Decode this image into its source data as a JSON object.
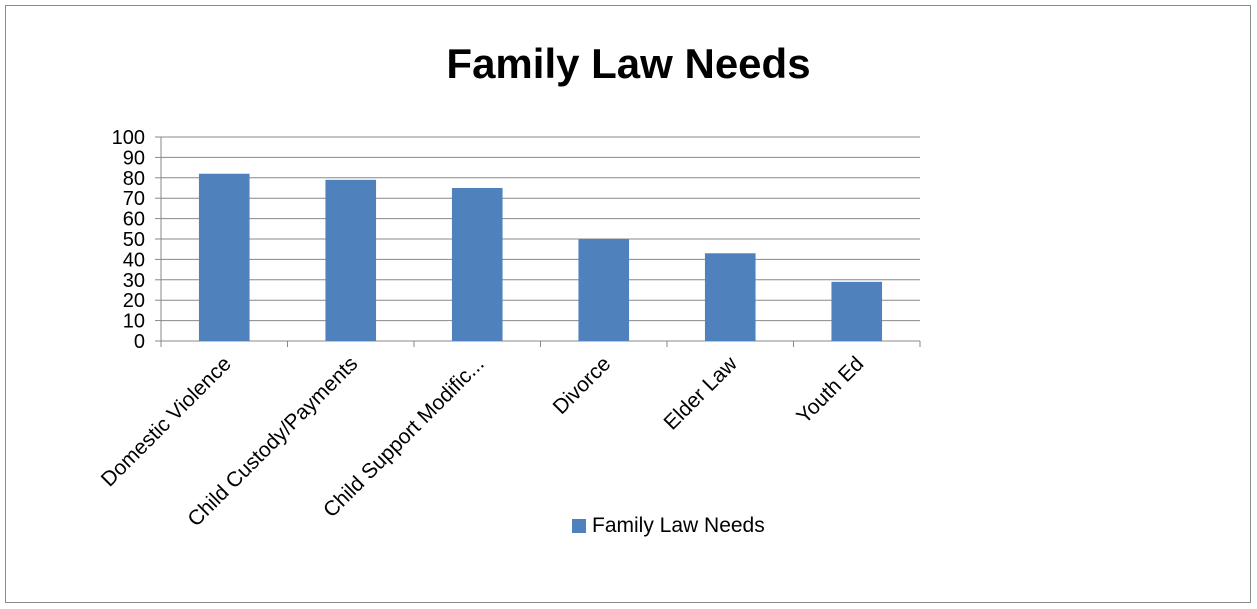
{
  "chart_data": {
    "type": "bar",
    "title": "Family Law Needs",
    "categories": [
      "Domestic Violence",
      "Child Custody/Payments",
      "Child Support Modific...",
      "Divorce",
      "Elder Law",
      "Youth Ed"
    ],
    "series": [
      {
        "name": "Family Law Needs",
        "values": [
          82,
          79,
          75,
          50,
          43,
          29
        ],
        "color": "#4F81BD"
      }
    ],
    "ylim": [
      0,
      100
    ],
    "yticks": [
      0,
      10,
      20,
      30,
      40,
      50,
      60,
      70,
      80,
      90,
      100
    ],
    "grid": true,
    "legend_position": "bottom"
  }
}
